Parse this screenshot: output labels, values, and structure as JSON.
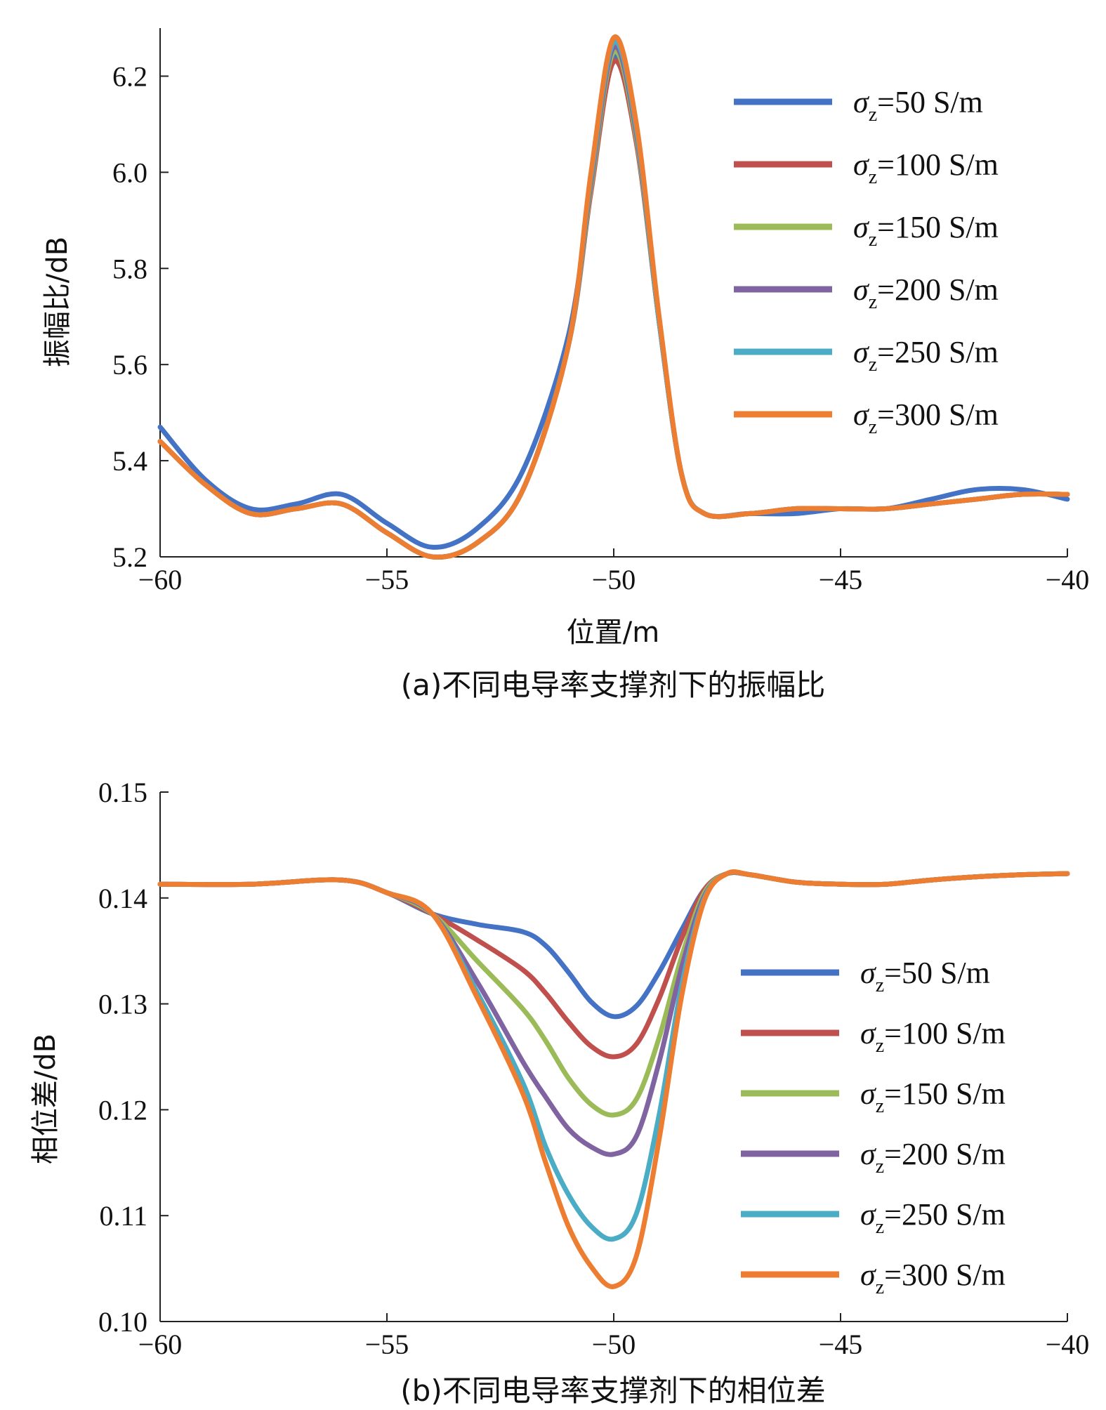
{
  "chart_data": [
    {
      "type": "line",
      "caption": "(a)不同电导率支撑剂下的振幅比",
      "xlabel": "位置/m",
      "ylabel": "振幅比/dB",
      "xlim": [
        -60,
        -40
      ],
      "ylim": [
        5.2,
        6.3
      ],
      "xticks": [
        -60,
        -55,
        -50,
        -45,
        -40
      ],
      "xtick_labels": [
        "−60",
        "−55",
        "−50",
        "−45",
        "−40"
      ],
      "yticks": [
        5.2,
        5.4,
        5.6,
        5.8,
        6.0,
        6.2
      ],
      "ytick_labels": [
        "5.2",
        "5.4",
        "5.6",
        "5.8",
        "6.0",
        "6.2"
      ],
      "legend_position": "top-right",
      "series": [
        {
          "name": "σz=50 S/m",
          "sigma_label": "σ",
          "sub": "z",
          "value_label": "=50 S/m",
          "color": "#4472c4",
          "x": [
            -60,
            -59,
            -58,
            -57,
            -56,
            -55,
            -54,
            -53,
            -52,
            -51,
            -50.5,
            -50,
            -49.5,
            -49,
            -48.5,
            -48,
            -47,
            -46,
            -45,
            -44,
            -43,
            -42,
            -41,
            -40
          ],
          "y": [
            5.47,
            5.36,
            5.3,
            5.31,
            5.33,
            5.27,
            5.22,
            5.26,
            5.38,
            5.66,
            5.97,
            6.24,
            6.07,
            5.69,
            5.37,
            5.29,
            5.29,
            5.29,
            5.3,
            5.3,
            5.32,
            5.34,
            5.34,
            5.32
          ]
        },
        {
          "name": "σz=100 S/m",
          "sigma_label": "σ",
          "sub": "z",
          "value_label": "=100 S/m",
          "color": "#c0504d",
          "x": [
            -60,
            -59,
            -58,
            -57,
            -56,
            -55,
            -54,
            -53,
            -52,
            -51,
            -50.5,
            -50,
            -49.5,
            -49,
            -48.5,
            -48,
            -47,
            -46,
            -45,
            -44,
            -43,
            -42,
            -41,
            -40
          ],
          "y": [
            5.44,
            5.35,
            5.29,
            5.3,
            5.31,
            5.25,
            5.2,
            5.23,
            5.34,
            5.64,
            5.96,
            6.23,
            6.06,
            5.69,
            5.37,
            5.29,
            5.29,
            5.3,
            5.3,
            5.3,
            5.31,
            5.32,
            5.33,
            5.33
          ]
        },
        {
          "name": "σz=150 S/m",
          "sigma_label": "σ",
          "sub": "z",
          "value_label": "=150 S/m",
          "color": "#9bbb59",
          "x": [
            -60,
            -59,
            -58,
            -57,
            -56,
            -55,
            -54,
            -53,
            -52,
            -51,
            -50.5,
            -50,
            -49.5,
            -49,
            -48.5,
            -48,
            -47,
            -46,
            -45,
            -44,
            -43,
            -42,
            -41,
            -40
          ],
          "y": [
            5.44,
            5.35,
            5.29,
            5.3,
            5.31,
            5.25,
            5.2,
            5.23,
            5.34,
            5.64,
            5.97,
            6.25,
            6.07,
            5.69,
            5.37,
            5.29,
            5.29,
            5.3,
            5.3,
            5.3,
            5.31,
            5.32,
            5.33,
            5.33
          ]
        },
        {
          "name": "σz=200 S/m",
          "sigma_label": "σ",
          "sub": "z",
          "value_label": "=200 S/m",
          "color": "#8064a2",
          "x": [
            -60,
            -59,
            -58,
            -57,
            -56,
            -55,
            -54,
            -53,
            -52,
            -51,
            -50.5,
            -50,
            -49.5,
            -49,
            -48.5,
            -48,
            -47,
            -46,
            -45,
            -44,
            -43,
            -42,
            -41,
            -40
          ],
          "y": [
            5.44,
            5.35,
            5.29,
            5.3,
            5.31,
            5.25,
            5.2,
            5.23,
            5.34,
            5.64,
            5.98,
            6.26,
            6.08,
            5.69,
            5.37,
            5.29,
            5.29,
            5.3,
            5.3,
            5.3,
            5.31,
            5.32,
            5.33,
            5.33
          ]
        },
        {
          "name": "σz=250 S/m",
          "sigma_label": "σ",
          "sub": "z",
          "value_label": "=250 S/m",
          "color": "#4bacc6",
          "x": [
            -60,
            -59,
            -58,
            -57,
            -56,
            -55,
            -54,
            -53,
            -52,
            -51,
            -50.5,
            -50,
            -49.5,
            -49,
            -48.5,
            -48,
            -47,
            -46,
            -45,
            -44,
            -43,
            -42,
            -41,
            -40
          ],
          "y": [
            5.44,
            5.35,
            5.29,
            5.3,
            5.31,
            5.25,
            5.2,
            5.23,
            5.34,
            5.64,
            5.99,
            6.27,
            6.09,
            5.69,
            5.37,
            5.29,
            5.29,
            5.3,
            5.3,
            5.3,
            5.31,
            5.32,
            5.33,
            5.33
          ]
        },
        {
          "name": "σz=300 S/m",
          "sigma_label": "σ",
          "sub": "z",
          "value_label": "=300 S/m",
          "color": "#ed7d31",
          "x": [
            -60,
            -59,
            -58,
            -57,
            -56,
            -55,
            -54,
            -53,
            -52,
            -51,
            -50.5,
            -50,
            -49.5,
            -49,
            -48.5,
            -48,
            -47,
            -46,
            -45,
            -44,
            -43,
            -42,
            -41,
            -40
          ],
          "y": [
            5.44,
            5.35,
            5.29,
            5.3,
            5.31,
            5.25,
            5.2,
            5.23,
            5.34,
            5.64,
            6.0,
            6.28,
            6.1,
            5.7,
            5.37,
            5.29,
            5.29,
            5.3,
            5.3,
            5.3,
            5.31,
            5.32,
            5.33,
            5.33
          ]
        }
      ]
    },
    {
      "type": "line",
      "caption": "(b)不同电导率支撑剂下的相位差",
      "xlabel": "",
      "ylabel": "相位差/dB",
      "xlim": [
        -60,
        -40
      ],
      "ylim": [
        0.1,
        0.15
      ],
      "xticks": [
        -60,
        -55,
        -50,
        -45,
        -40
      ],
      "xtick_labels": [
        "−60",
        "−55",
        "−50",
        "−45",
        "−40"
      ],
      "yticks": [
        0.1,
        0.11,
        0.12,
        0.13,
        0.14,
        0.15
      ],
      "ytick_labels": [
        "0.10",
        "0.11",
        "0.12",
        "0.13",
        "0.14",
        "0.15"
      ],
      "legend_position": "right",
      "series": [
        {
          "name": "σz=50 S/m",
          "sigma_label": "σ",
          "sub": "z",
          "value_label": "=50 S/m",
          "color": "#4472c4",
          "x": [
            -60,
            -58,
            -56,
            -55,
            -54,
            -53,
            -52,
            -51.5,
            -51,
            -50.5,
            -50,
            -49.5,
            -49,
            -48.5,
            -48,
            -47.5,
            -47,
            -46,
            -45,
            -44,
            -43,
            -42,
            -41,
            -40
          ],
          "y": [
            0.1413,
            0.1413,
            0.1417,
            0.1405,
            0.1385,
            0.1375,
            0.1368,
            0.1355,
            0.133,
            0.1302,
            0.1288,
            0.1298,
            0.133,
            0.137,
            0.1408,
            0.1423,
            0.1422,
            0.1415,
            0.1413,
            0.1413,
            0.1417,
            0.142,
            0.1422,
            0.1423
          ]
        },
        {
          "name": "σz=100 S/m",
          "sigma_label": "σ",
          "sub": "z",
          "value_label": "=100 S/m",
          "color": "#c0504d",
          "x": [
            -60,
            -58,
            -56,
            -55,
            -54,
            -53,
            -52,
            -51.5,
            -51,
            -50.5,
            -50,
            -49.5,
            -49,
            -48.5,
            -48,
            -47.5,
            -47,
            -46,
            -45,
            -44,
            -43,
            -42,
            -41,
            -40
          ],
          "y": [
            0.1413,
            0.1413,
            0.1417,
            0.1405,
            0.1385,
            0.136,
            0.1332,
            0.131,
            0.1283,
            0.126,
            0.125,
            0.1262,
            0.1305,
            0.1362,
            0.1408,
            0.1423,
            0.1422,
            0.1415,
            0.1413,
            0.1413,
            0.1417,
            0.142,
            0.1422,
            0.1423
          ]
        },
        {
          "name": "σz=150 S/m",
          "sigma_label": "σ",
          "sub": "z",
          "value_label": "=150 S/m",
          "color": "#9bbb59",
          "x": [
            -60,
            -58,
            -56,
            -55,
            -54,
            -53,
            -52,
            -51.5,
            -51,
            -50.5,
            -50,
            -49.5,
            -49,
            -48.5,
            -48,
            -47.5,
            -47,
            -46,
            -45,
            -44,
            -43,
            -42,
            -41,
            -40
          ],
          "y": [
            0.1413,
            0.1413,
            0.1417,
            0.1405,
            0.1385,
            0.134,
            0.1295,
            0.1265,
            0.123,
            0.1205,
            0.1195,
            0.121,
            0.1268,
            0.1345,
            0.1405,
            0.1423,
            0.1422,
            0.1415,
            0.1413,
            0.1413,
            0.1417,
            0.142,
            0.1422,
            0.1423
          ]
        },
        {
          "name": "σz=200 S/m",
          "sigma_label": "σ",
          "sub": "z",
          "value_label": "=200 S/m",
          "color": "#8064a2",
          "x": [
            -60,
            -58,
            -56,
            -55,
            -54,
            -53,
            -52,
            -51.5,
            -51,
            -50.5,
            -50,
            -49.5,
            -49,
            -48.5,
            -48,
            -47.5,
            -47,
            -46,
            -45,
            -44,
            -43,
            -42,
            -41,
            -40
          ],
          "y": [
            0.1413,
            0.1413,
            0.1417,
            0.1405,
            0.1385,
            0.132,
            0.1245,
            0.1212,
            0.1182,
            0.1165,
            0.1158,
            0.1175,
            0.1245,
            0.1335,
            0.1402,
            0.1423,
            0.1422,
            0.1415,
            0.1413,
            0.1413,
            0.1417,
            0.142,
            0.1422,
            0.1423
          ]
        },
        {
          "name": "σz=250 S/m",
          "sigma_label": "σ",
          "sub": "z",
          "value_label": "=250 S/m",
          "color": "#4bacc6",
          "x": [
            -60,
            -58,
            -56,
            -55,
            -54,
            -53,
            -52,
            -51.5,
            -51,
            -50.5,
            -50,
            -49.5,
            -49,
            -48.5,
            -48,
            -47.5,
            -47,
            -46,
            -45,
            -44,
            -43,
            -42,
            -41,
            -40
          ],
          "y": [
            0.1413,
            0.1413,
            0.1417,
            0.1405,
            0.1385,
            0.131,
            0.1225,
            0.1165,
            0.112,
            0.109,
            0.1078,
            0.1102,
            0.1195,
            0.1318,
            0.14,
            0.1423,
            0.1422,
            0.1415,
            0.1413,
            0.1413,
            0.1417,
            0.142,
            0.1422,
            0.1423
          ]
        },
        {
          "name": "σz=300 S/m",
          "sigma_label": "σ",
          "sub": "z",
          "value_label": "=300 S/m",
          "color": "#ed7d31",
          "x": [
            -60,
            -58,
            -56,
            -55,
            -54,
            -53,
            -52,
            -51.5,
            -51,
            -50.5,
            -50,
            -49.5,
            -49,
            -48.5,
            -48,
            -47.5,
            -47,
            -46,
            -45,
            -44,
            -43,
            -42,
            -41,
            -40
          ],
          "y": [
            0.1413,
            0.1413,
            0.1417,
            0.1405,
            0.1385,
            0.1305,
            0.1215,
            0.115,
            0.109,
            0.1052,
            0.1033,
            0.1062,
            0.1172,
            0.1308,
            0.1398,
            0.1423,
            0.1422,
            0.1415,
            0.1413,
            0.1413,
            0.1417,
            0.142,
            0.1422,
            0.1423
          ]
        }
      ]
    }
  ]
}
